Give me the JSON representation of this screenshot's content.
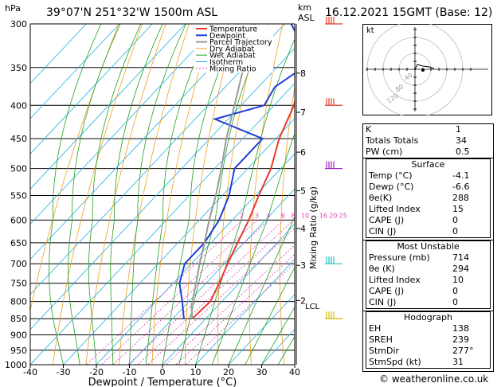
{
  "header": {
    "hpa_label": "hPa",
    "location": "39°07'N 251°32'W 1500m ASL",
    "km_label": "km",
    "asl_label": "ASL",
    "date": "16.12.2021 15GMT (Base: 12)"
  },
  "chart_data": {
    "type": "line",
    "xlabel": "Dewpoint / Temperature (°C)",
    "ylabel": "hPa",
    "right_axis_label": "Mixing Ratio (g/kg)",
    "x_ticks": [
      -40,
      -30,
      -20,
      -10,
      0,
      10,
      20,
      30,
      40
    ],
    "x_range": [
      -40,
      40
    ],
    "y_ticks": [
      300,
      350,
      400,
      450,
      500,
      550,
      600,
      650,
      700,
      750,
      800,
      850,
      900,
      950,
      1000
    ],
    "y_range": [
      1000,
      300
    ],
    "km_ticks": [
      {
        "label": "8",
        "p": 357
      },
      {
        "label": "7",
        "p": 410
      },
      {
        "label": "6",
        "p": 472
      },
      {
        "label": "5",
        "p": 541
      },
      {
        "label": "4",
        "p": 618
      },
      {
        "label": "3",
        "p": 704
      },
      {
        "label": "2",
        "p": 797
      }
    ],
    "lcl": {
      "label": "LCL",
      "p": 812
    },
    "mixing_ratio_labels": [
      "2",
      "3",
      "4",
      "6",
      "8",
      "10",
      "16",
      "20",
      "25"
    ],
    "legend": [
      "Temperature",
      "Dewpoint",
      "Parcel Trajectory",
      "Dry Adiabat",
      "Wet Adiabat",
      "Isotherm",
      "Mixing Ratio"
    ],
    "series": [
      {
        "name": "Temperature",
        "color": "#e8392c",
        "points": [
          [
            850,
            -4.1
          ],
          [
            800,
            -3.5
          ],
          [
            750,
            -6
          ],
          [
            700,
            -9
          ],
          [
            650,
            -12
          ],
          [
            600,
            -15
          ],
          [
            550,
            -19
          ],
          [
            500,
            -23
          ],
          [
            450,
            -29
          ],
          [
            400,
            -34
          ],
          [
            350,
            -42
          ],
          [
            300,
            -51
          ]
        ]
      },
      {
        "name": "Dewpoint",
        "color": "#1d3fd6",
        "points": [
          [
            850,
            -6.6
          ],
          [
            800,
            -12
          ],
          [
            750,
            -18
          ],
          [
            700,
            -22
          ],
          [
            675,
            -22
          ],
          [
            650,
            -22
          ],
          [
            600,
            -24
          ],
          [
            550,
            -28
          ],
          [
            500,
            -34
          ],
          [
            450,
            -34
          ],
          [
            420,
            -54
          ],
          [
            400,
            -43
          ],
          [
            375,
            -45
          ],
          [
            350,
            -42
          ],
          [
            320,
            -50
          ],
          [
            300,
            -58
          ]
        ]
      },
      {
        "name": "Parcel Trajectory",
        "color": "#9a9a9a",
        "points": [
          [
            850,
            -4.1
          ],
          [
            812,
            -8
          ],
          [
            750,
            -13
          ],
          [
            700,
            -17.5
          ],
          [
            650,
            -22
          ],
          [
            600,
            -27
          ],
          [
            550,
            -32
          ],
          [
            500,
            -38
          ],
          [
            450,
            -45
          ],
          [
            400,
            -52
          ],
          [
            350,
            -60
          ],
          [
            300,
            -69
          ]
        ]
      }
    ]
  },
  "hodograph": {
    "kt_label": "kt",
    "ring_labels": [
      "40",
      "80",
      "120"
    ],
    "trace": [
      [
        0,
        0
      ],
      [
        3,
        -6
      ],
      [
        10,
        -4
      ],
      [
        18,
        -3
      ],
      [
        24,
        -1
      ]
    ]
  },
  "indices": {
    "top": [
      {
        "k": "K",
        "v": "1"
      },
      {
        "k": "Totals Totals",
        "v": "34"
      },
      {
        "k": "PW (cm)",
        "v": "0.5"
      }
    ],
    "surface": {
      "title": "Surface",
      "rows": [
        {
          "k": "Temp (°C)",
          "v": "-4.1"
        },
        {
          "k": "Dewp (°C)",
          "v": "-6.6"
        },
        {
          "k": "θe(K)",
          "v": "288"
        },
        {
          "k": "Lifted Index",
          "v": "15"
        },
        {
          "k": "CAPE (J)",
          "v": "0"
        },
        {
          "k": "CIN (J)",
          "v": "0"
        }
      ]
    },
    "most_unstable": {
      "title": "Most Unstable",
      "rows": [
        {
          "k": "Pressure (mb)",
          "v": "714"
        },
        {
          "k": "θe (K)",
          "v": "294"
        },
        {
          "k": "Lifted Index",
          "v": "10"
        },
        {
          "k": "CAPE (J)",
          "v": "0"
        },
        {
          "k": "CIN (J)",
          "v": "0"
        }
      ]
    },
    "hodograph_tbl": {
      "title": "Hodograph",
      "rows": [
        {
          "k": "EH",
          "v": "138"
        },
        {
          "k": "SREH",
          "v": "239"
        },
        {
          "k": "StmDir",
          "v": "277°"
        },
        {
          "k": "StmSpd (kt)",
          "v": "31"
        }
      ]
    }
  },
  "wind_profile": [
    {
      "p": 300,
      "color": "#e8392c"
    },
    {
      "p": 400,
      "color": "#e8392c"
    },
    {
      "p": 500,
      "color": "#a020c0"
    },
    {
      "p": 700,
      "color": "#20c0c0"
    },
    {
      "p": 850,
      "color": "#d0c000"
    }
  ],
  "footer": {
    "copyright": "© weatheronline.co.uk"
  },
  "colors": {
    "temperature": "#e8392c",
    "dewpoint": "#1d3fd6",
    "parcel": "#9a9a9a",
    "dry_adiabat": "#f0a020",
    "wet_adiabat": "#20a020",
    "isotherm": "#20b0e0",
    "mixing_ratio": "#e040c0"
  }
}
